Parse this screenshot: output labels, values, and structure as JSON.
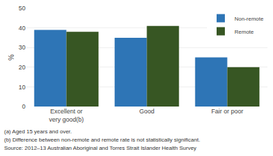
{
  "chart_data": {
    "type": "bar",
    "categories": [
      "Excellent or\nvery good(b)",
      "Good",
      "Fair or poor"
    ],
    "series": [
      {
        "name": "Non-remote",
        "color": "#2e75b6",
        "values": [
          39,
          35,
          25
        ]
      },
      {
        "name": "Remote",
        "color": "#375623",
        "values": [
          38,
          41,
          20
        ]
      }
    ],
    "ylabel": "%",
    "ylim": [
      0,
      50
    ],
    "yticks": [
      0,
      10,
      20,
      30,
      40,
      50
    ],
    "grid": true,
    "legend": "upper right",
    "annotations": [
      "(a) Aged 15 years and over.",
      "(b) Difference between non-remote and remote rate is not statistically significant.",
      "Source: 2012–13 Australian Aboriginal and Torres Strait Islander Health Survey"
    ]
  }
}
